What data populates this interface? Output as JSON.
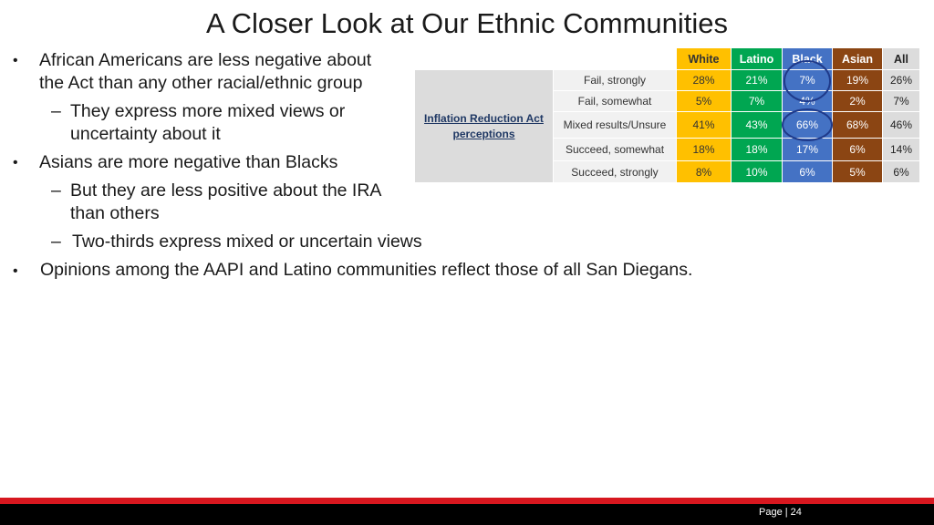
{
  "title": "A Closer Look at Our Ethnic Communities",
  "bullets": [
    {
      "level": 1,
      "lines": [
        "African Americans are less negative about",
        "the Act than any other racial/ethnic group"
      ]
    },
    {
      "level": 2,
      "lines": [
        "They express more mixed views or",
        "uncertainty about it"
      ]
    },
    {
      "level": 1,
      "lines": [
        "Asians are more negative than Blacks"
      ]
    },
    {
      "level": 2,
      "lines": [
        "But they are less positive about the IRA",
        "than others"
      ]
    },
    {
      "level": 2,
      "lines": [
        "Two-thirds express mixed or uncertain views"
      ]
    },
    {
      "level": 1,
      "lines": [
        "Opinions among the AAPI and Latino communities reflect those of all San Diegans."
      ]
    }
  ],
  "table": {
    "group_label": "Inflation Reduction Act perceptions",
    "columns": [
      "White",
      "Latino",
      "Black",
      "Asian",
      "All"
    ],
    "rows": [
      {
        "label": "Fail, strongly",
        "values": [
          "28%",
          "21%",
          "7%",
          "19%",
          "26%"
        ]
      },
      {
        "label": "Fail, somewhat",
        "values": [
          "5%",
          "7%",
          "4%",
          "2%",
          "7%"
        ]
      },
      {
        "label": "Mixed results/Unsure",
        "values": [
          "41%",
          "43%",
          "66%",
          "68%",
          "46%"
        ]
      },
      {
        "label": "Succeed, somewhat",
        "values": [
          "18%",
          "18%",
          "17%",
          "6%",
          "14%"
        ]
      },
      {
        "label": "Succeed, strongly",
        "values": [
          "8%",
          "10%",
          "6%",
          "5%",
          "6%"
        ]
      }
    ],
    "colors": {
      "White": "#ffc000",
      "Latino": "#00a651",
      "Black": "#4472c4",
      "Asian": "#8b4513",
      "All": "#dcdcdc"
    },
    "highlight_color": "#1f3a8a"
  },
  "footer": {
    "page_label": "Page | 24"
  }
}
